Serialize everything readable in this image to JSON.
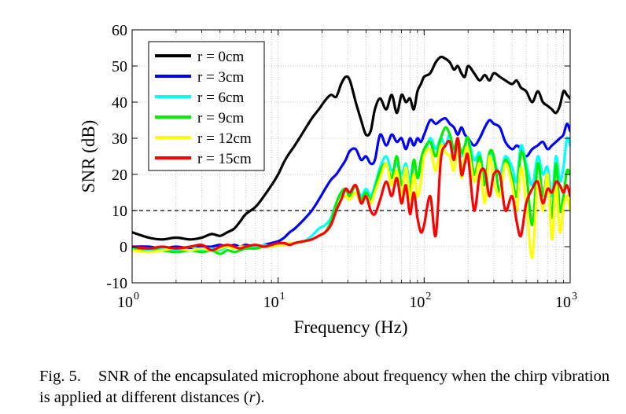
{
  "figure": {
    "caption_label": "Fig. 5.",
    "caption_text_a": "SNR of the encapsulated microphone about frequency when the chirp vibration is applied at different distances (",
    "caption_var": "r",
    "caption_text_b": ")."
  },
  "chart_data": {
    "type": "line",
    "title": "",
    "xlabel": "Frequency (Hz)",
    "ylabel": "SNR (dB)",
    "xscale": "log",
    "xlim": [
      1,
      1000
    ],
    "ylim": [
      -10,
      60
    ],
    "yticks": [
      -10,
      0,
      10,
      20,
      30,
      40,
      50,
      60
    ],
    "ytick_labels": [
      "-10",
      "0",
      "10",
      "20",
      "30",
      "40",
      "50",
      "60"
    ],
    "xticks": [
      {
        "base": "10",
        "exp": "0",
        "value": 1
      },
      {
        "base": "10",
        "exp": "1",
        "value": 10
      },
      {
        "base": "10",
        "exp": "2",
        "value": 100
      },
      {
        "base": "10",
        "exp": "3",
        "value": 1000
      }
    ],
    "grid": true,
    "legend_position": "top-left",
    "reference_line": {
      "y": 10,
      "style": "dashed",
      "color": "#000000"
    },
    "series": [
      {
        "name": "r = 0cm",
        "color": "#000000",
        "x": [
          1,
          1.3,
          1.6,
          2,
          2.5,
          3,
          3.5,
          4,
          4.5,
          5,
          5.5,
          6,
          7,
          8,
          9,
          10,
          11,
          12,
          13,
          15,
          17,
          19,
          21,
          23,
          25,
          27,
          29,
          31,
          34,
          37,
          40,
          43,
          46,
          50,
          55,
          60,
          65,
          70,
          75,
          80,
          85,
          90,
          95,
          100,
          110,
          120,
          130,
          140,
          150,
          160,
          170,
          180,
          190,
          200,
          220,
          240,
          260,
          280,
          300,
          330,
          360,
          400,
          430,
          460,
          500,
          550,
          600,
          650,
          700,
          750,
          800,
          850,
          900,
          950,
          1000
        ],
        "y": [
          4,
          2.5,
          2,
          2.5,
          2,
          2.5,
          3.5,
          3,
          4,
          5,
          7,
          9,
          11,
          14,
          17,
          20,
          23.5,
          26,
          28,
          32,
          35.5,
          38,
          40.5,
          42,
          41.5,
          45,
          47,
          46,
          40,
          35,
          31,
          32,
          38,
          41,
          38,
          42,
          37,
          42,
          40,
          41,
          38,
          43,
          45,
          47,
          48,
          51,
          52.5,
          52,
          51,
          49,
          50,
          48,
          47,
          50,
          48,
          46,
          47.5,
          46,
          48,
          47,
          46,
          45,
          46,
          44,
          43,
          40,
          43,
          40,
          39,
          38,
          37,
          39,
          43,
          42,
          41
        ]
      },
      {
        "name": "r = 3cm",
        "color": "#0000ff",
        "x": [
          1,
          1.3,
          1.6,
          2,
          2.5,
          3,
          3.5,
          4,
          4.5,
          5,
          5.5,
          6,
          7,
          8,
          9,
          10,
          11,
          12,
          13,
          15,
          17,
          19,
          21,
          23,
          25,
          27,
          29,
          31,
          34,
          37,
          40,
          43,
          46,
          50,
          55,
          60,
          65,
          70,
          75,
          80,
          85,
          90,
          95,
          100,
          110,
          120,
          130,
          140,
          150,
          160,
          170,
          180,
          190,
          200,
          220,
          240,
          260,
          280,
          300,
          330,
          360,
          400,
          430,
          460,
          500,
          550,
          600,
          650,
          700,
          750,
          800,
          850,
          900,
          950,
          1000
        ],
        "y": [
          0,
          0,
          -0.5,
          0,
          -0.5,
          0,
          0,
          0.5,
          0,
          0.5,
          0,
          0.5,
          0,
          0.5,
          1,
          1.5,
          2.5,
          4,
          5,
          7.5,
          10,
          13,
          16,
          18.5,
          20,
          22,
          24,
          26.5,
          27,
          24,
          25,
          23,
          24,
          31,
          28,
          31,
          29,
          30,
          27,
          30,
          28,
          30,
          29,
          31,
          35,
          34,
          35,
          35.5,
          34,
          33,
          31,
          33,
          31,
          30,
          28,
          30,
          33,
          35,
          34,
          33,
          29,
          27,
          28,
          27,
          25,
          27,
          28,
          29,
          27,
          28,
          29,
          30,
          31,
          34,
          32
        ]
      },
      {
        "name": "r = 6cm",
        "color": "#00ffff",
        "x": [
          1,
          1.3,
          1.6,
          2,
          2.5,
          3,
          3.5,
          4,
          4.5,
          5,
          5.5,
          6,
          7,
          8,
          9,
          10,
          11,
          12,
          13,
          15,
          17,
          19,
          21,
          23,
          25,
          27,
          29,
          31,
          34,
          37,
          40,
          43,
          46,
          50,
          55,
          60,
          65,
          70,
          75,
          80,
          85,
          90,
          95,
          100,
          110,
          120,
          130,
          140,
          150,
          160,
          170,
          180,
          190,
          200,
          220,
          240,
          260,
          280,
          300,
          330,
          360,
          400,
          430,
          460,
          500,
          550,
          600,
          650,
          700,
          750,
          800,
          850,
          900,
          950,
          1000
        ],
        "y": [
          -0.5,
          -1,
          -0.5,
          -1,
          0,
          -1,
          -0.5,
          -1,
          0,
          -0.5,
          0,
          -0.5,
          0,
          0.5,
          0,
          0.5,
          0.5,
          1,
          1,
          1.5,
          3,
          5,
          6,
          8,
          12,
          15,
          16,
          15,
          17,
          14,
          16,
          14,
          17,
          22,
          25,
          21,
          23,
          20,
          23,
          18,
          24,
          19,
          22,
          25,
          30,
          27,
          30,
          28,
          31,
          26,
          29,
          25,
          28,
          30,
          24,
          26,
          19,
          26,
          24,
          20,
          25,
          22,
          18,
          28,
          23,
          17,
          25,
          20,
          22,
          14,
          25,
          18,
          22,
          30,
          28
        ]
      },
      {
        "name": "r = 9cm",
        "color": "#00ee00",
        "x": [
          1,
          1.3,
          1.6,
          2,
          2.5,
          3,
          3.5,
          4,
          4.5,
          5,
          5.5,
          6,
          7,
          8,
          9,
          10,
          11,
          12,
          13,
          15,
          17,
          19,
          21,
          23,
          25,
          27,
          29,
          31,
          34,
          37,
          40,
          43,
          46,
          50,
          55,
          60,
          65,
          70,
          75,
          80,
          85,
          90,
          95,
          100,
          110,
          120,
          130,
          140,
          150,
          160,
          170,
          180,
          190,
          200,
          220,
          240,
          260,
          280,
          300,
          330,
          360,
          400,
          430,
          460,
          500,
          550,
          600,
          650,
          700,
          750,
          800,
          850,
          900,
          950,
          1000
        ],
        "y": [
          -1,
          -0.5,
          -1,
          -1.5,
          -1,
          -1.5,
          -1,
          -2,
          -1,
          -1.5,
          -1,
          -0.5,
          -0.5,
          0,
          0,
          0.5,
          1,
          0.5,
          1,
          1.5,
          2,
          3,
          4,
          7,
          12,
          15,
          16,
          14,
          17,
          13,
          15,
          13,
          16,
          21,
          23,
          19,
          25,
          17,
          21,
          15,
          24,
          19,
          24,
          27,
          29,
          25,
          30,
          33,
          31,
          27,
          30,
          26,
          28,
          30,
          20,
          25,
          17,
          26,
          25,
          15,
          24,
          19,
          14,
          26,
          21,
          6,
          23,
          14,
          20,
          8,
          23,
          10,
          14,
          21,
          20
        ]
      },
      {
        "name": "r = 12cm",
        "color": "#ffff00",
        "x": [
          1,
          1.3,
          1.6,
          2,
          2.5,
          3,
          3.5,
          4,
          4.5,
          5,
          5.5,
          6,
          7,
          8,
          9,
          10,
          11,
          12,
          13,
          15,
          17,
          19,
          21,
          23,
          25,
          27,
          29,
          31,
          34,
          37,
          40,
          43,
          46,
          50,
          55,
          60,
          65,
          70,
          75,
          80,
          85,
          90,
          95,
          100,
          110,
          120,
          130,
          140,
          150,
          160,
          170,
          180,
          190,
          200,
          220,
          240,
          260,
          280,
          300,
          330,
          360,
          400,
          430,
          460,
          500,
          550,
          600,
          650,
          700,
          750,
          800,
          850,
          900,
          950,
          1000
        ],
        "y": [
          -1,
          -1.5,
          -1,
          -0.5,
          -1,
          -0.5,
          -1,
          -0.5,
          0,
          -0.5,
          0,
          0,
          0.5,
          0,
          0,
          0.5,
          0.5,
          1,
          1,
          1.5,
          2,
          3,
          4,
          6,
          10,
          13,
          14,
          13,
          15,
          12,
          14,
          12,
          15,
          19,
          23,
          17,
          21,
          14,
          22,
          13,
          20,
          14,
          18,
          25,
          27,
          21,
          28,
          26,
          25,
          21,
          28,
          19,
          26,
          27,
          18,
          23,
          12,
          25,
          18,
          14,
          23,
          17,
          10,
          22,
          12,
          -3,
          18,
          10,
          20,
          2,
          17,
          4,
          11,
          14,
          10
        ]
      },
      {
        "name": "r = 15cm",
        "color": "#ff0000",
        "x": [
          1,
          1.3,
          1.6,
          2,
          2.5,
          3,
          3.5,
          4,
          4.5,
          5,
          5.5,
          6,
          7,
          8,
          9,
          10,
          11,
          12,
          13,
          15,
          17,
          19,
          21,
          23,
          25,
          27,
          29,
          31,
          34,
          37,
          40,
          43,
          46,
          50,
          55,
          60,
          65,
          70,
          75,
          80,
          85,
          90,
          95,
          100,
          110,
          120,
          130,
          140,
          150,
          160,
          170,
          180,
          190,
          200,
          220,
          240,
          260,
          280,
          300,
          330,
          360,
          400,
          430,
          460,
          500,
          550,
          600,
          650,
          700,
          750,
          800,
          850,
          900,
          950,
          1000
        ],
        "y": [
          0,
          -0.5,
          0,
          -0.5,
          0,
          0.5,
          -1,
          0,
          0.5,
          0,
          -0.5,
          0,
          0.5,
          0,
          0.5,
          1,
          1,
          0.5,
          1,
          1.5,
          2,
          3,
          4,
          6,
          10,
          13,
          16,
          15,
          17,
          12,
          14,
          10,
          9,
          13,
          18,
          14,
          19,
          12,
          17,
          9,
          15,
          8,
          4,
          6,
          14,
          3,
          24,
          28,
          29,
          24,
          30,
          20,
          23,
          25,
          10,
          20,
          21,
          14,
          20,
          20,
          10,
          14,
          7,
          3,
          12,
          16,
          18,
          12,
          16,
          15,
          18,
          17,
          15,
          17,
          14
        ]
      }
    ]
  }
}
